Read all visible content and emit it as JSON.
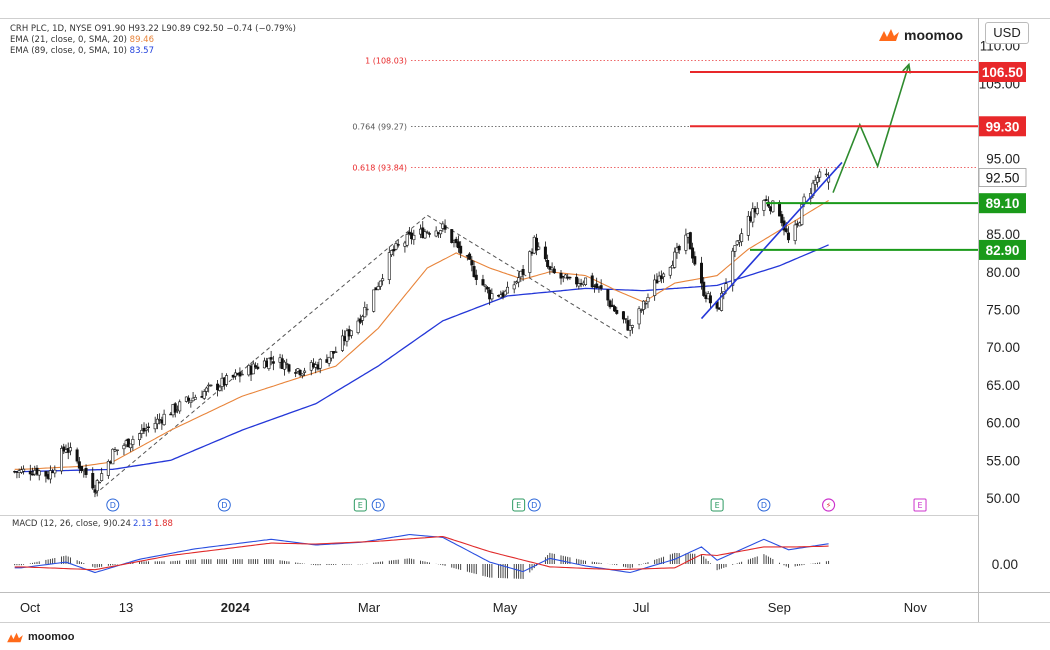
{
  "header": {
    "line1": "CRH PLC, 1D, NYSE  O91.90  H93.22  L90.89  C92.50  −0.74 (−0.79%)",
    "ema21_label": "EMA (21, close, 0, SMA, 20)",
    "ema21_value": "89.46",
    "ema89_label": "EMA (89, close, 0, SMA, 10)",
    "ema89_value": "83.57"
  },
  "brand": {
    "top_right": "moomoo",
    "bottom_left": "moomoo"
  },
  "currency": "USD",
  "colors": {
    "up": "#ffffff",
    "down": "#111111",
    "ema21": "#e8843a",
    "ema89": "#2437d8",
    "trendline": "#2437d8",
    "projection": "#2e8b2e",
    "resistance": "#e8282a",
    "support": "#1a9a1a",
    "macd": "#2a4fe0",
    "signal": "#e02a2a",
    "fib_red": "#e8282a",
    "fib_gray": "#555555"
  },
  "chart_data": {
    "type": "candlestick",
    "symbol": "CRH PLC",
    "timeframe": "1D",
    "exchange": "NYSE",
    "ohlc_last": {
      "open": 91.9,
      "high": 93.22,
      "low": 90.89,
      "close": 92.5,
      "change": -0.74,
      "change_pct": -0.79
    },
    "price_axis": {
      "range": [
        48,
        112
      ],
      "ticks": [
        "110.00",
        "105.00",
        "95.00",
        "85.00",
        "80.00",
        "75.00",
        "70.00",
        "65.00",
        "60.00",
        "55.00",
        "50.00"
      ]
    },
    "time_axis": {
      "labels": [
        "Oct",
        "13",
        "2024",
        "Mar",
        "May",
        "Jul",
        "Sep",
        "Nov"
      ]
    },
    "price_anchors": [
      [
        "2023-09-28",
        53.5
      ],
      [
        "2023-10-04",
        53.8
      ],
      [
        "2023-10-10",
        53.0
      ],
      [
        "2023-10-18",
        56.8
      ],
      [
        "2023-10-25",
        54.0
      ],
      [
        "2023-10-31",
        51.5
      ],
      [
        "2023-11-08",
        56.0
      ],
      [
        "2023-11-20",
        58.5
      ],
      [
        "2023-12-04",
        61.5
      ],
      [
        "2023-12-15",
        63.5
      ],
      [
        "2024-01-05",
        66.5
      ],
      [
        "2024-01-18",
        68.5
      ],
      [
        "2024-01-31",
        67.0
      ],
      [
        "2024-02-07",
        67.5
      ],
      [
        "2024-02-16",
        69.5
      ],
      [
        "2024-02-28",
        74.5
      ],
      [
        "2024-03-06",
        78.5
      ],
      [
        "2024-03-12",
        82.5
      ],
      [
        "2024-03-20",
        84.5
      ],
      [
        "2024-03-28",
        85.5
      ],
      [
        "2024-04-04",
        85.8
      ],
      [
        "2024-04-10",
        83.5
      ],
      [
        "2024-04-18",
        80.0
      ],
      [
        "2024-04-25",
        77.0
      ],
      [
        "2024-05-03",
        77.2
      ],
      [
        "2024-05-10",
        80.0
      ],
      [
        "2024-05-15",
        84.0
      ],
      [
        "2024-05-22",
        80.0
      ],
      [
        "2024-05-31",
        78.5
      ],
      [
        "2024-06-07",
        79.0
      ],
      [
        "2024-06-14",
        77.5
      ],
      [
        "2024-06-21",
        74.5
      ],
      [
        "2024-06-27",
        72.5
      ],
      [
        "2024-07-03",
        75.5
      ],
      [
        "2024-07-10",
        79.5
      ],
      [
        "2024-07-17",
        82.0
      ],
      [
        "2024-07-23",
        84.5
      ],
      [
        "2024-07-29",
        78.0
      ],
      [
        "2024-08-05",
        74.5
      ],
      [
        "2024-08-12",
        82.0
      ],
      [
        "2024-08-19",
        87.0
      ],
      [
        "2024-08-26",
        89.5
      ],
      [
        "2024-09-02",
        88.0
      ],
      [
        "2024-09-06",
        84.0
      ],
      [
        "2024-09-10",
        86.0
      ],
      [
        "2024-09-13",
        89.5
      ],
      [
        "2024-09-19",
        92.5
      ],
      [
        "2024-09-24",
        92.5
      ]
    ],
    "ema21": [
      [
        "2023-09-28",
        53.8
      ],
      [
        "2023-10-25",
        54.2
      ],
      [
        "2023-11-08",
        54.8
      ],
      [
        "2023-12-04",
        59.0
      ],
      [
        "2024-01-05",
        63.5
      ],
      [
        "2024-01-31",
        66.0
      ],
      [
        "2024-02-16",
        67.5
      ],
      [
        "2024-03-06",
        72.5
      ],
      [
        "2024-03-28",
        80.5
      ],
      [
        "2024-04-10",
        82.5
      ],
      [
        "2024-04-25",
        80.5
      ],
      [
        "2024-05-10",
        79.0
      ],
      [
        "2024-05-22",
        80.0
      ],
      [
        "2024-06-07",
        79.5
      ],
      [
        "2024-06-21",
        77.5
      ],
      [
        "2024-07-03",
        76.0
      ],
      [
        "2024-07-17",
        78.5
      ],
      [
        "2024-08-05",
        79.5
      ],
      [
        "2024-08-19",
        83.0
      ],
      [
        "2024-09-02",
        85.5
      ],
      [
        "2024-09-13",
        87.5
      ],
      [
        "2024-09-24",
        89.46
      ]
    ],
    "ema89": [
      [
        "2023-09-28",
        53.5
      ],
      [
        "2023-11-08",
        53.8
      ],
      [
        "2023-12-04",
        55.0
      ],
      [
        "2024-01-05",
        59.0
      ],
      [
        "2024-02-07",
        62.5
      ],
      [
        "2024-03-06",
        67.5
      ],
      [
        "2024-04-04",
        73.5
      ],
      [
        "2024-05-03",
        76.8
      ],
      [
        "2024-06-07",
        77.8
      ],
      [
        "2024-07-03",
        77.5
      ],
      [
        "2024-08-05",
        78.2
      ],
      [
        "2024-09-02",
        80.8
      ],
      [
        "2024-09-24",
        83.57
      ]
    ],
    "fibonacci": [
      {
        "label": "1 (108.03)",
        "value": 108.03,
        "color": "red"
      },
      {
        "label": "0.764 (99.27)",
        "value": 99.27,
        "color": "gray"
      },
      {
        "label": "0.618 (93.84)",
        "value": 93.84,
        "color": "red"
      }
    ],
    "resistance_levels": [
      {
        "label": "106.50",
        "value": 106.5
      },
      {
        "label": "99.30",
        "value": 99.3
      }
    ],
    "support_levels": [
      {
        "label": "89.10",
        "value": 89.1
      },
      {
        "label": "82.90",
        "value": 82.9
      }
    ],
    "current_price_label": "92.50",
    "zigzag": [
      [
        "2023-10-31",
        50.5
      ],
      [
        "2024-03-28",
        87.5
      ],
      [
        "2024-06-27",
        71.0
      ]
    ],
    "trendline": [
      [
        "2024-07-29",
        73.8
      ],
      [
        "2024-09-30",
        94.5
      ]
    ],
    "projection": [
      [
        "2024-09-26",
        90.5
      ],
      [
        "2024-10-08",
        99.5
      ],
      [
        "2024-10-16",
        94.0
      ],
      [
        "2024-10-30",
        107.5
      ]
    ],
    "events": [
      {
        "date": "2023-11-08",
        "mark": "D",
        "kind": "dividend"
      },
      {
        "date": "2023-12-28",
        "mark": "D",
        "kind": "dividend"
      },
      {
        "date": "2024-02-27",
        "mark": "E",
        "kind": "earnings"
      },
      {
        "date": "2024-03-06",
        "mark": "D",
        "kind": "dividend"
      },
      {
        "date": "2024-05-08",
        "mark": "E",
        "kind": "earnings"
      },
      {
        "date": "2024-05-15",
        "mark": "D",
        "kind": "dividend"
      },
      {
        "date": "2024-08-05",
        "mark": "E",
        "kind": "earnings"
      },
      {
        "date": "2024-08-26",
        "mark": "D",
        "kind": "dividend"
      },
      {
        "date": "2024-09-24",
        "mark": "⚡",
        "kind": "flash"
      },
      {
        "date": "2024-11-04",
        "mark": "E",
        "kind": "earnings-upcoming"
      }
    ],
    "macd": {
      "label": "MACD (12, 26, close, 9)",
      "histogram_value": "0.24",
      "macd_value": "2.13",
      "signal_value": "1.88",
      "axis_label": "0.00",
      "macd_anchors": [
        [
          "2023-09-28",
          -0.4
        ],
        [
          "2023-10-18",
          0.2
        ],
        [
          "2023-10-31",
          -0.9
        ],
        [
          "2023-11-20",
          0.5
        ],
        [
          "2023-12-15",
          1.6
        ],
        [
          "2024-01-18",
          2.6
        ],
        [
          "2024-02-07",
          2.0
        ],
        [
          "2024-02-28",
          2.3
        ],
        [
          "2024-03-20",
          3.1
        ],
        [
          "2024-04-04",
          2.8
        ],
        [
          "2024-04-25",
          0.2
        ],
        [
          "2024-05-10",
          -0.8
        ],
        [
          "2024-05-22",
          0.6
        ],
        [
          "2024-06-07",
          -0.2
        ],
        [
          "2024-06-27",
          -0.9
        ],
        [
          "2024-07-17",
          0.5
        ],
        [
          "2024-07-29",
          1.8
        ],
        [
          "2024-08-05",
          0.4
        ],
        [
          "2024-08-26",
          2.6
        ],
        [
          "2024-09-06",
          1.5
        ],
        [
          "2024-09-24",
          2.13
        ]
      ],
      "signal_anchors": [
        [
          "2023-09-28",
          -0.3
        ],
        [
          "2023-10-31",
          -0.6
        ],
        [
          "2023-12-04",
          0.9
        ],
        [
          "2024-01-18",
          2.2
        ],
        [
          "2024-02-07",
          2.1
        ],
        [
          "2024-03-06",
          2.4
        ],
        [
          "2024-04-04",
          2.9
        ],
        [
          "2024-04-25",
          1.3
        ],
        [
          "2024-05-22",
          -0.3
        ],
        [
          "2024-06-21",
          -0.6
        ],
        [
          "2024-07-17",
          -0.4
        ],
        [
          "2024-07-29",
          1.0
        ],
        [
          "2024-08-05",
          0.9
        ],
        [
          "2024-08-26",
          1.8
        ],
        [
          "2024-09-10",
          1.8
        ],
        [
          "2024-09-24",
          1.88
        ]
      ]
    }
  }
}
